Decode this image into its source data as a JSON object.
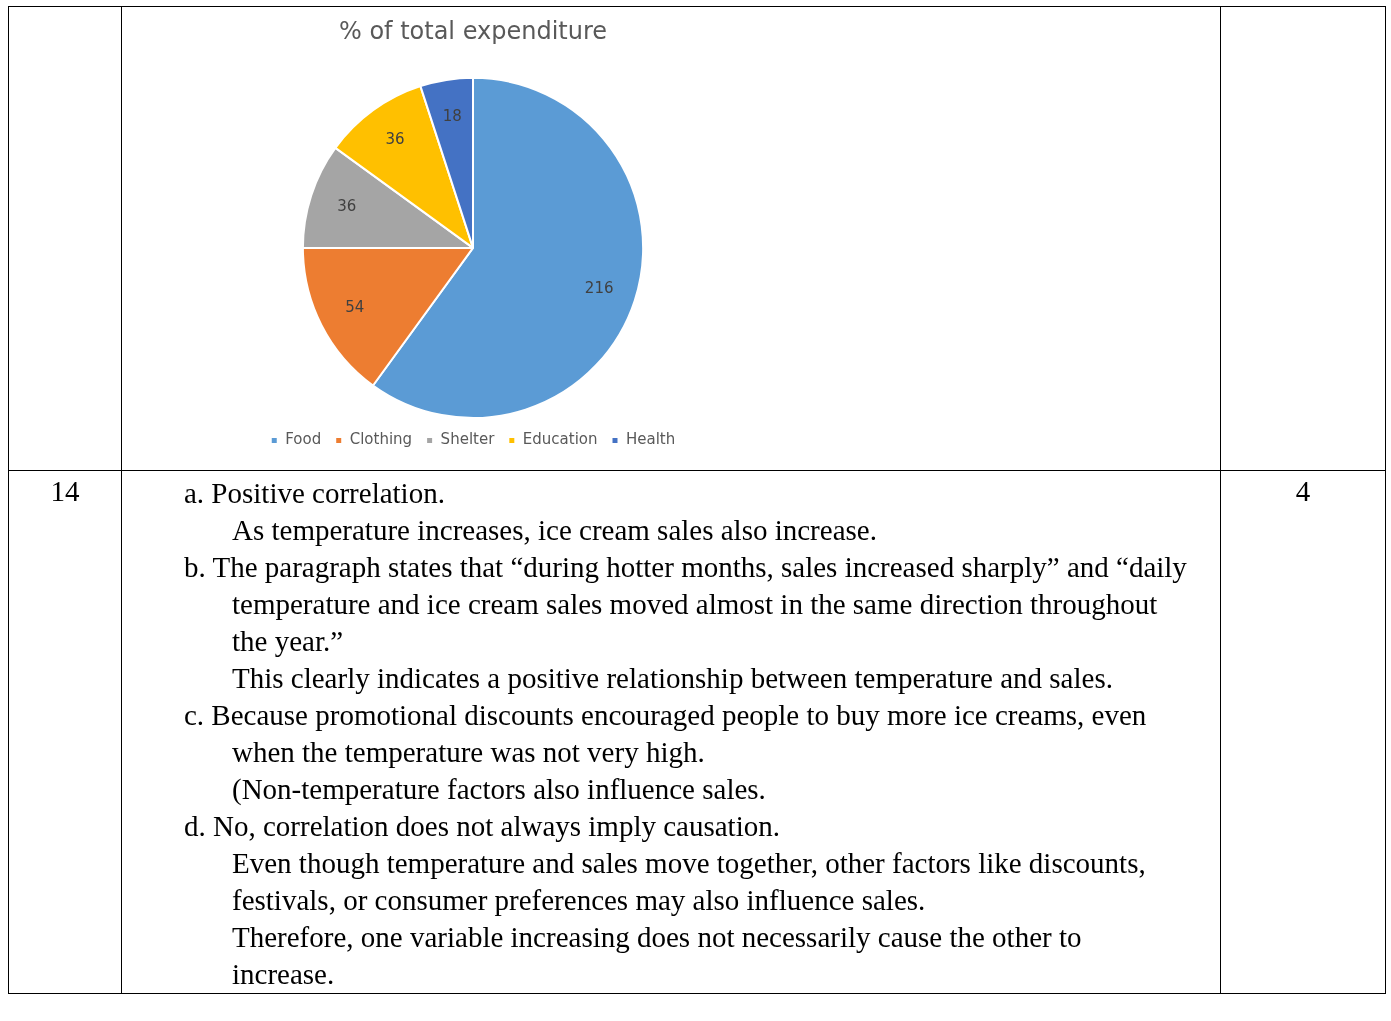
{
  "chart_data": {
    "type": "pie",
    "title": "% of total expenditure",
    "categories": [
      "Food",
      "Clothing",
      "Shelter",
      "Education",
      "Health"
    ],
    "values": [
      216,
      54,
      36,
      36,
      18
    ],
    "colors": [
      "#5b9bd5",
      "#ed7d31",
      "#a5a5a5",
      "#ffc000",
      "#4472c4"
    ],
    "data_labels": true,
    "legend": "bottom",
    "annotations": [
      "14",
      "4",
      "a. Positive correlation.",
      "As temperature increases, ice cream sales also increase.",
      "b. The paragraph states that “during hotter months, sales increased sharply” and “daily temperature and ice cream sales moved almost in the same direction throughout the year.”",
      "This clearly indicates a positive relationship between temperature and sales.",
      "c. Because promotional discounts encouraged people to buy more ice creams, even when the temperature was not very high.",
      "(Non-temperature factors also influence sales.",
      "d. No, correlation does not always imply causation.",
      "Even though temperature and sales move together, other factors like discounts, festivals, or consumer preferences may also influence sales.\nTherefore, one variable increasing does not necessarily cause the other to increase."
    ]
  }
}
